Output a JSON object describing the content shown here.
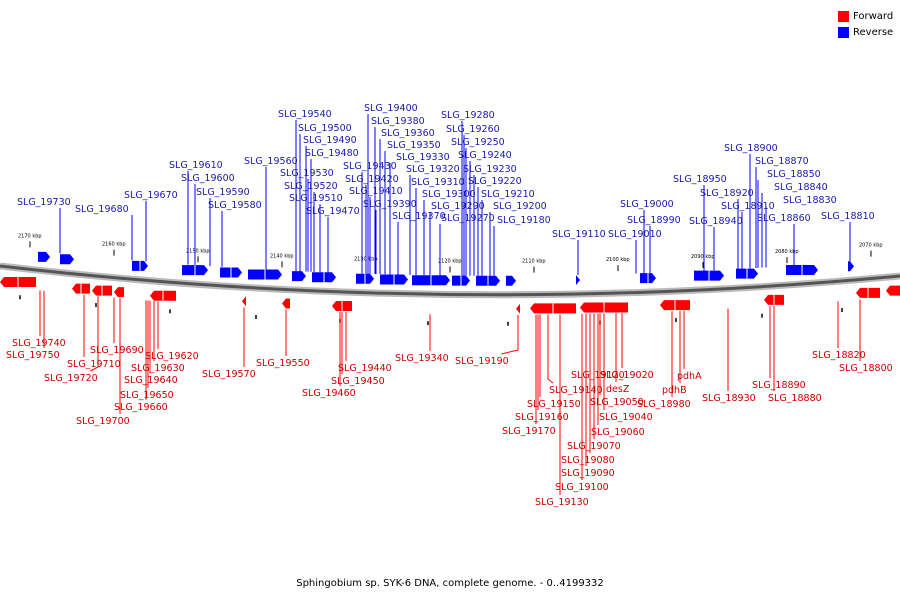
{
  "legend": {
    "forward_label": "Forward",
    "reverse_label": "Reverse",
    "forward_color": "#ff0000",
    "reverse_color": "#0000ff"
  },
  "caption": "Sphingobium sp. SYK-6 DNA, complete genome. - 0..4199332",
  "colors": {
    "label_forward": "#cc0000",
    "label_reverse": "#1a1aaa",
    "backbone_dark": "#555555",
    "backbone_light": "#bbbbbb"
  },
  "scale_ticks": [
    {
      "label": "2170 kbp"
    },
    {
      "label": "2160 kbp"
    },
    {
      "label": "2150 kbp"
    },
    {
      "label": "2140 kbp"
    },
    {
      "label": "2130 kbp"
    },
    {
      "label": "2120 kbp"
    },
    {
      "label": "2110 kbp"
    },
    {
      "label": "2100 kbp"
    },
    {
      "label": "2090 kbp"
    },
    {
      "label": "2080 kbp"
    },
    {
      "label": "2070 kbp"
    }
  ],
  "reverse_genes": [
    "SLG_19730",
    "SLG_19680",
    "SLG_19670",
    "SLG_19610",
    "SLG_19600",
    "SLG_19590",
    "SLG_19580",
    "SLG_19560",
    "SLG_19540",
    "SLG_19500",
    "SLG_19490",
    "SLG_19480",
    "SLG_19530",
    "SLG_19520",
    "SLG_19510",
    "SLG_19470",
    "SLG_19400",
    "SLG_19380",
    "SLG_19360",
    "SLG_19350",
    "SLG_19330",
    "SLG_19430",
    "SLG_19420",
    "SLG_19410",
    "SLG_19390",
    "SLG_19370",
    "SLG_19320",
    "SLG_19310",
    "SLG_19300",
    "SLG_19290",
    "SLG_19270",
    "SLG_19280",
    "SLG_19260",
    "SLG_19250",
    "SLG_19240",
    "SLG_19230",
    "SLG_19220",
    "SLG_19210",
    "SLG_19200",
    "SLG_19180",
    "SLG_19110",
    "SLG_19010",
    "SLG_19000",
    "SLG_18990",
    "SLG_18950",
    "SLG_18940",
    "SLG_18920",
    "SLG_18910",
    "SLG_18900",
    "SLG_18870",
    "SLG_18850",
    "SLG_18840",
    "SLG_18830",
    "SLG_18860",
    "SLG_18810"
  ],
  "forward_genes": [
    "SLG_19740",
    "SLG_19750",
    "SLG_19710",
    "SLG_19720",
    "SLG_19690",
    "SLG_19700",
    "SLG_19620",
    "SLG_19630",
    "SLG_19640",
    "SLG_19650",
    "SLG_19660",
    "SLG_19570",
    "SLG_19550",
    "SLG_19440",
    "SLG_19450",
    "SLG_19460",
    "SLG_19340",
    "SLG_19190",
    "SLG_19140",
    "SLG_19150",
    "SLG_19160",
    "SLG_19170",
    "SLG_19120",
    "SLG_19020",
    "desZ",
    "SLG_19050",
    "SLG_19040",
    "SLG_19060",
    "SLG_19070",
    "SLG_19080",
    "SLG_19090",
    "SLG_19100",
    "SLG_19130",
    "pdhA",
    "pdhB",
    "SLG_18980",
    "SLG_18930",
    "SLG_18880",
    "SLG_18890",
    "SLG_18820",
    "SLG_18800"
  ]
}
